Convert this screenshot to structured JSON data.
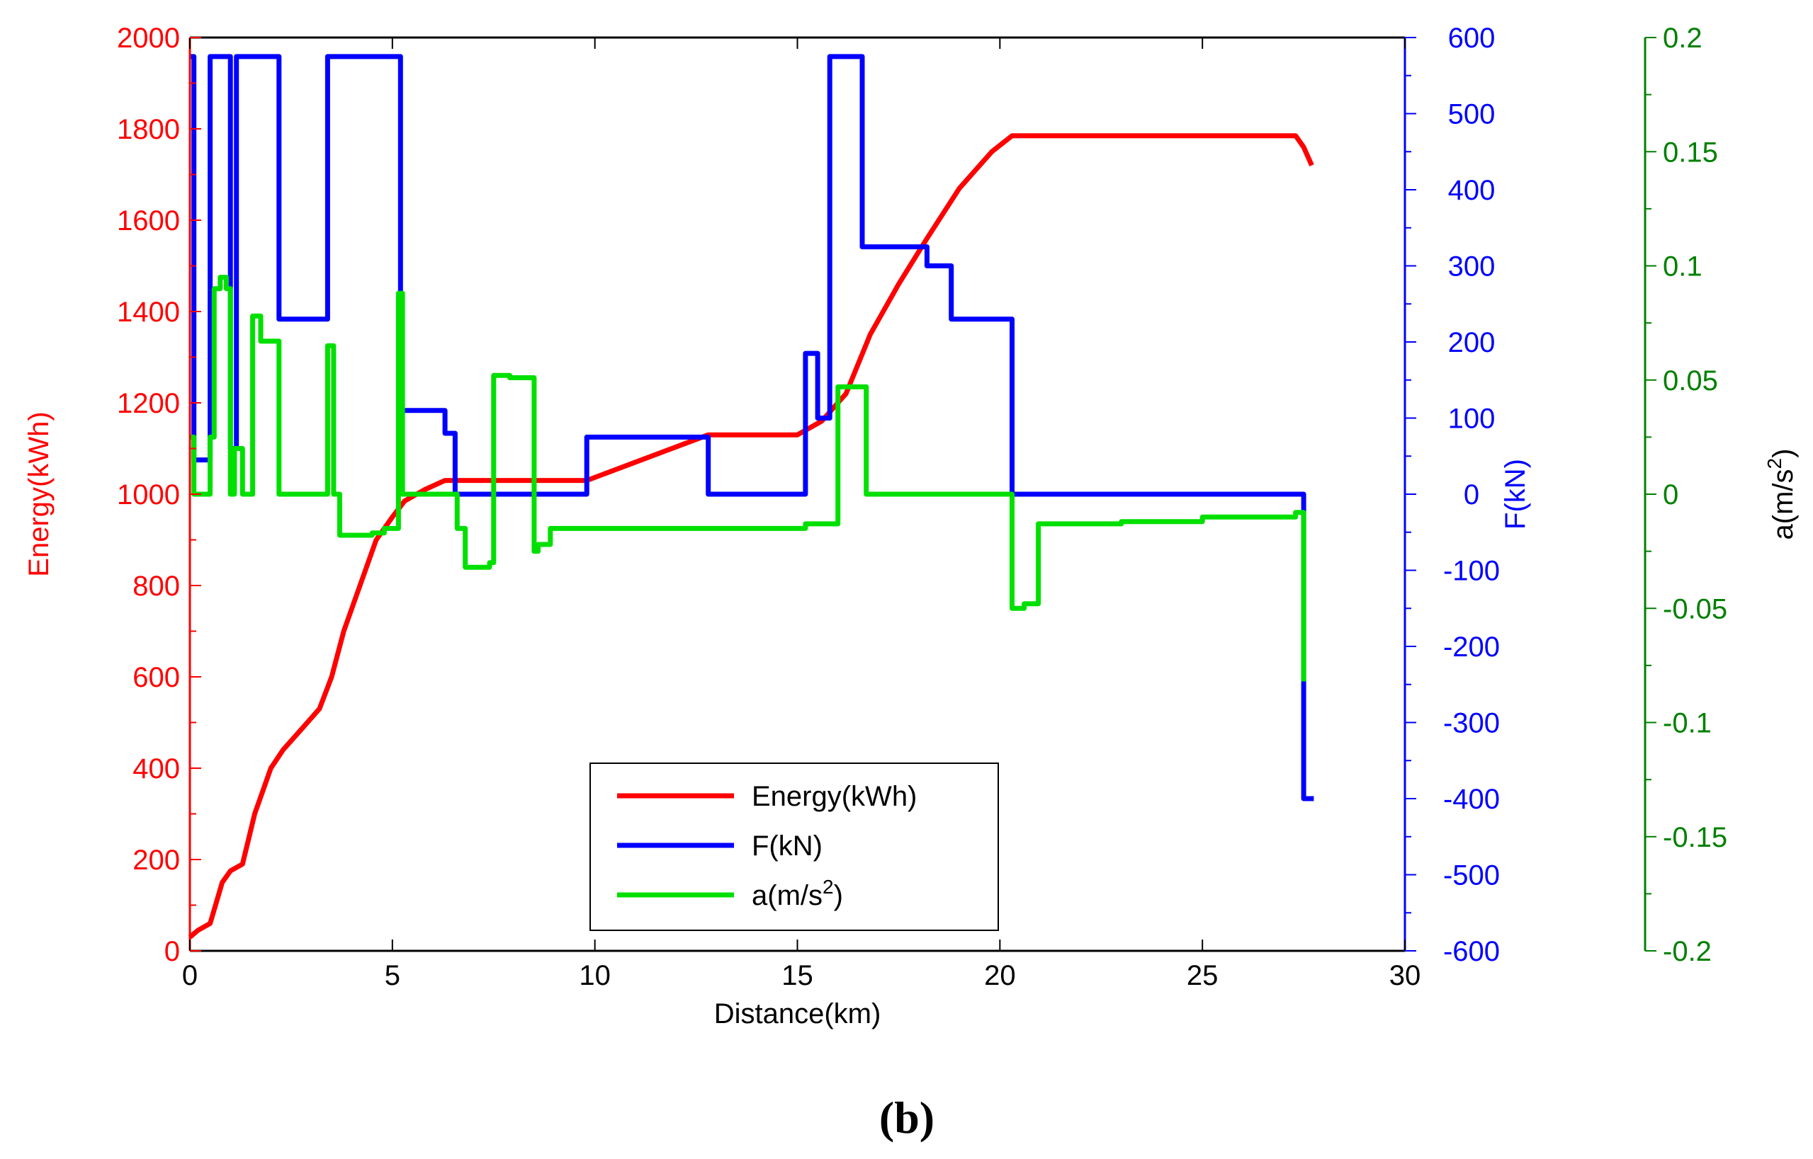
{
  "chart_data": {
    "type": "line",
    "caption": "b",
    "xlabel": "Distance(km)",
    "xlim": [
      0,
      30
    ],
    "x_ticks": [
      "0",
      "5",
      "10",
      "15",
      "20",
      "25",
      "30"
    ],
    "axes": {
      "energy": {
        "label": "Energy(kWh)",
        "lim": [
          0,
          2000
        ],
        "ticks": [
          "0",
          "200",
          "400",
          "600",
          "800",
          "1000",
          "1200",
          "1400",
          "1600",
          "1800",
          "2000"
        ],
        "color": "#ff0000"
      },
      "force": {
        "label": "F(kN)",
        "lim": [
          -600,
          600
        ],
        "ticks": [
          "-600",
          "-500",
          "-400",
          "-300",
          "-200",
          "-100",
          "0",
          "100",
          "200",
          "300",
          "400",
          "500",
          "600"
        ],
        "color": "#0000ff"
      },
      "accel": {
        "label_base": "a(m/s",
        "label_sup": "2",
        "label_end": ")",
        "lim": [
          -0.2,
          0.2
        ],
        "ticks": [
          "-0.2",
          "-0.15",
          "-0.1",
          "-0.05",
          "0",
          "0.05",
          "0.1",
          "0.15",
          "0.2"
        ],
        "color": "#008000"
      }
    },
    "legend": {
      "position": "bottom-center",
      "entries": [
        {
          "text": "Energy(kWh)",
          "color": "#ff0000"
        },
        {
          "text": "F(kN)",
          "color": "#0000ff"
        },
        {
          "base": "a(m/s",
          "sup": "2",
          "end": ")",
          "color": "#00e000"
        }
      ]
    },
    "series": [
      {
        "name": "Energy(kWh)",
        "axis": "energy",
        "color": "#ff0000",
        "x": [
          0,
          0.2,
          0.5,
          0.8,
          1.0,
          1.3,
          1.6,
          2.0,
          2.3,
          2.8,
          3.2,
          3.5,
          3.8,
          4.2,
          4.6,
          5.0,
          5.3,
          5.8,
          6.3,
          6.6,
          9.8,
          11.0,
          12.8,
          15.0,
          15.6,
          16.2,
          16.8,
          17.5,
          18.2,
          19.0,
          19.8,
          20.3,
          27.3,
          27.5,
          27.7
        ],
        "y": [
          30,
          45,
          60,
          150,
          175,
          190,
          300,
          400,
          440,
          490,
          530,
          600,
          700,
          800,
          900,
          950,
          985,
          1010,
          1030,
          1030,
          1030,
          1070,
          1130,
          1130,
          1160,
          1220,
          1350,
          1460,
          1560,
          1670,
          1750,
          1785,
          1785,
          1760,
          1720
        ]
      },
      {
        "name": "F(kN)",
        "axis": "force",
        "color": "#0000ff",
        "step": true,
        "x": [
          0,
          0.1,
          0.5,
          0.6,
          1.0,
          1.15,
          1.3,
          2.2,
          3.4,
          5.2,
          6.3,
          6.55,
          9.8,
          12.8,
          15.2,
          15.5,
          15.8,
          16.0,
          16.6,
          17.5,
          18.2,
          18.8,
          20.3,
          27.5,
          27.75
        ],
        "y": [
          575,
          45,
          575,
          575,
          60,
          575,
          575,
          230,
          575,
          110,
          80,
          0,
          75,
          0,
          185,
          100,
          575,
          575,
          325,
          325,
          300,
          230,
          0,
          -400,
          -400
        ]
      },
      {
        "name": "a(m/s2)",
        "axis": "accel",
        "color": "#00e000",
        "step": true,
        "x": [
          0,
          0.1,
          0.5,
          0.6,
          0.75,
          0.9,
          1.0,
          1.1,
          1.3,
          1.55,
          1.75,
          2.2,
          3.4,
          3.55,
          3.7,
          4.5,
          4.8,
          5.15,
          5.25,
          6.3,
          6.6,
          6.8,
          7.4,
          7.5,
          7.9,
          8.5,
          8.6,
          8.9,
          9.5,
          12.8,
          15.2,
          16.0,
          16.7,
          20.3,
          20.6,
          20.95,
          23.0,
          25.0,
          27.3,
          27.5
        ],
        "y": [
          0.025,
          0,
          0.025,
          0.09,
          0.095,
          0.09,
          0,
          0.02,
          0,
          0.078,
          0.067,
          0,
          0.065,
          0,
          -0.018,
          -0.017,
          -0.015,
          0.088,
          0,
          0,
          -0.015,
          -0.032,
          -0.03,
          0.052,
          0.051,
          -0.025,
          -0.022,
          -0.015,
          -0.015,
          -0.015,
          -0.013,
          0.047,
          0,
          -0.05,
          -0.048,
          -0.013,
          -0.012,
          -0.01,
          -0.008,
          -0.082
        ]
      }
    ]
  }
}
